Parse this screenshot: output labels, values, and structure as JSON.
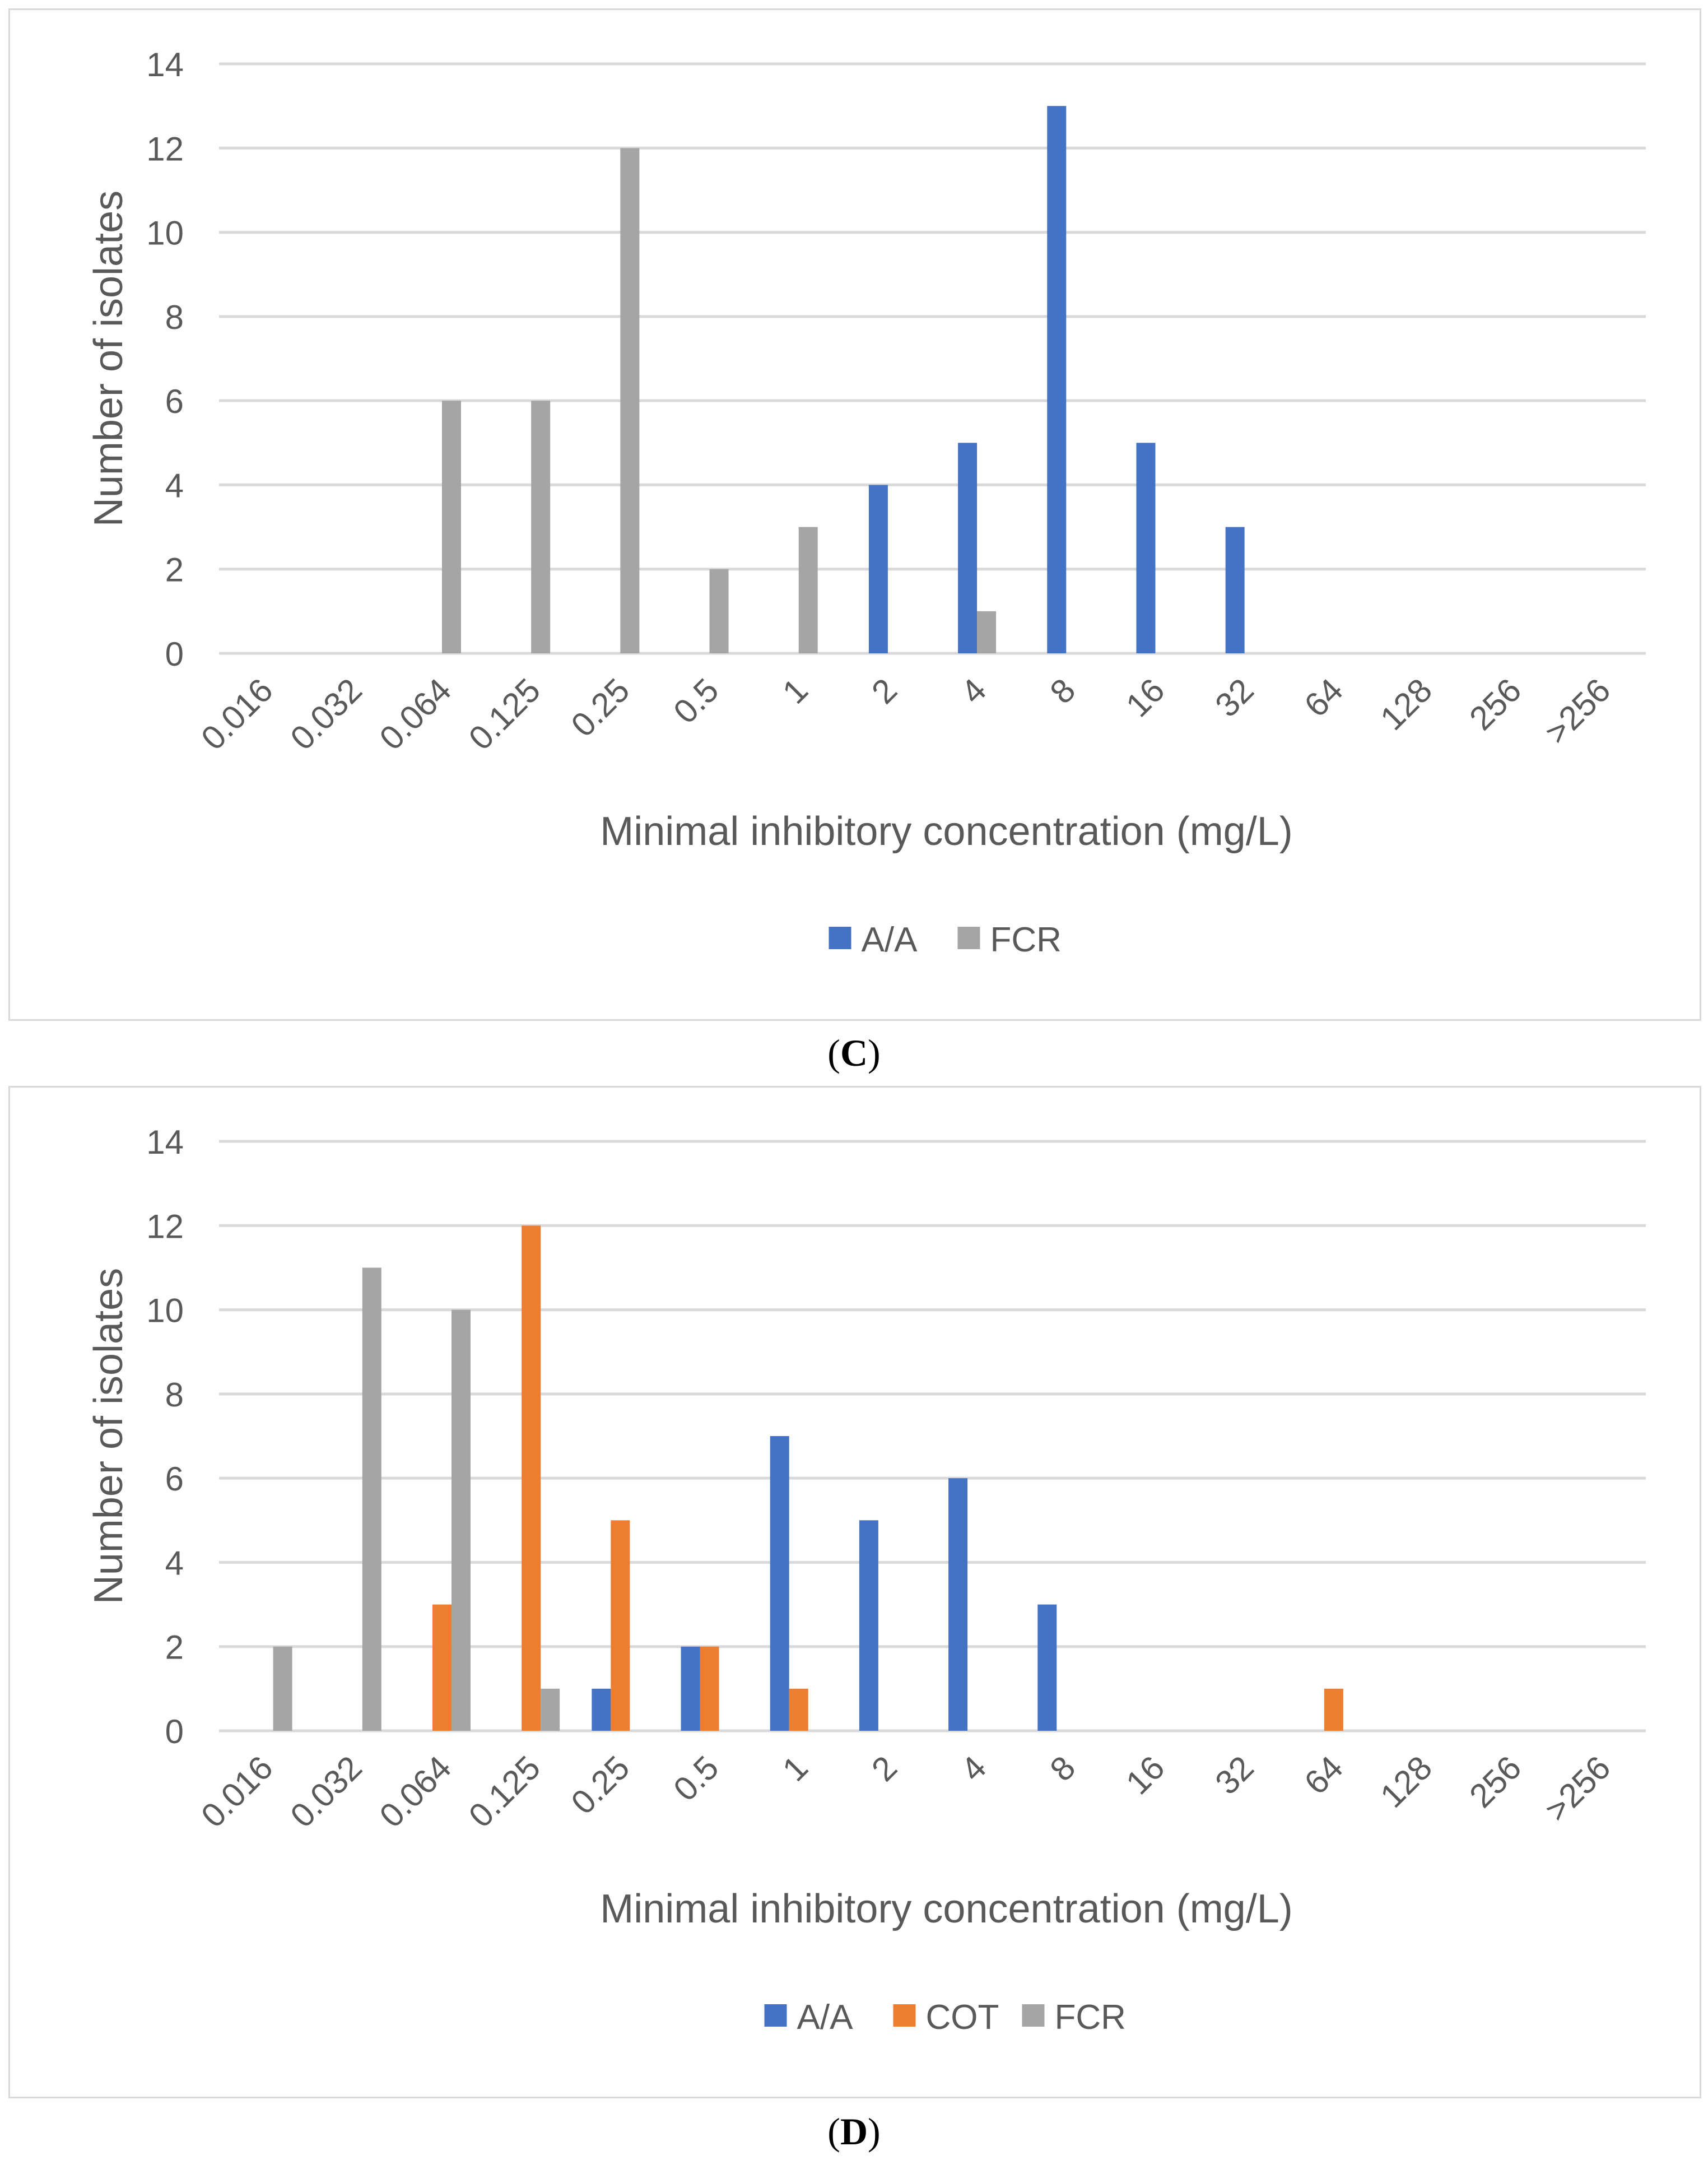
{
  "chart_data": [
    {
      "type": "bar",
      "panel": "C",
      "categories": [
        "0.016",
        "0.032",
        "0.064",
        "0.125",
        "0.25",
        "0.5",
        "1",
        "2",
        "4",
        "8",
        "16",
        "32",
        "64",
        "128",
        "256",
        ">256"
      ],
      "series": [
        {
          "name": "A/A",
          "color": "#4472c4",
          "values": [
            0,
            0,
            0,
            0,
            0,
            0,
            0,
            4,
            5,
            13,
            5,
            3,
            0,
            0,
            0,
            0
          ]
        },
        {
          "name": "FCR",
          "color": "#a5a5a5",
          "values": [
            0,
            0,
            6,
            6,
            12,
            2,
            3,
            0,
            1,
            0,
            0,
            0,
            0,
            0,
            0,
            0
          ]
        }
      ],
      "yticks": [
        "0",
        "2",
        "4",
        "6",
        "8",
        "10",
        "12",
        "14"
      ],
      "ylim": [
        0,
        14
      ],
      "xlabel": "Minimal inhibitory concentration (mg/L)",
      "ylabel": "Number of isolates",
      "legend": "bottom",
      "grid": true
    },
    {
      "type": "bar",
      "panel": "D",
      "categories": [
        "0.016",
        "0.032",
        "0.064",
        "0.125",
        "0.25",
        "0.5",
        "1",
        "2",
        "4",
        "8",
        "16",
        "32",
        "64",
        "128",
        "256",
        ">256"
      ],
      "series": [
        {
          "name": "A/A",
          "color": "#4472c4",
          "values": [
            0,
            0,
            0,
            0,
            1,
            2,
            7,
            5,
            6,
            3,
            0,
            0,
            0,
            0,
            0,
            0
          ]
        },
        {
          "name": "COT",
          "color": "#ed7d31",
          "values": [
            0,
            0,
            3,
            12,
            5,
            2,
            1,
            0,
            0,
            0,
            0,
            0,
            1,
            0,
            0,
            0
          ]
        },
        {
          "name": "FCR",
          "color": "#a5a5a5",
          "values": [
            2,
            11,
            10,
            1,
            0,
            0,
            0,
            0,
            0,
            0,
            0,
            0,
            0,
            0,
            0,
            0
          ]
        }
      ],
      "yticks": [
        "0",
        "2",
        "4",
        "6",
        "8",
        "10",
        "12",
        "14"
      ],
      "ylim": [
        0,
        14
      ],
      "xlabel": "Minimal inhibitory concentration (mg/L)",
      "ylabel": "Number of isolates",
      "legend": "bottom",
      "grid": true
    }
  ],
  "captions": {
    "c_open": "(",
    "c_letter": "C",
    "c_close": ")",
    "d_open": "(",
    "d_letter": "D",
    "d_close": ")"
  }
}
